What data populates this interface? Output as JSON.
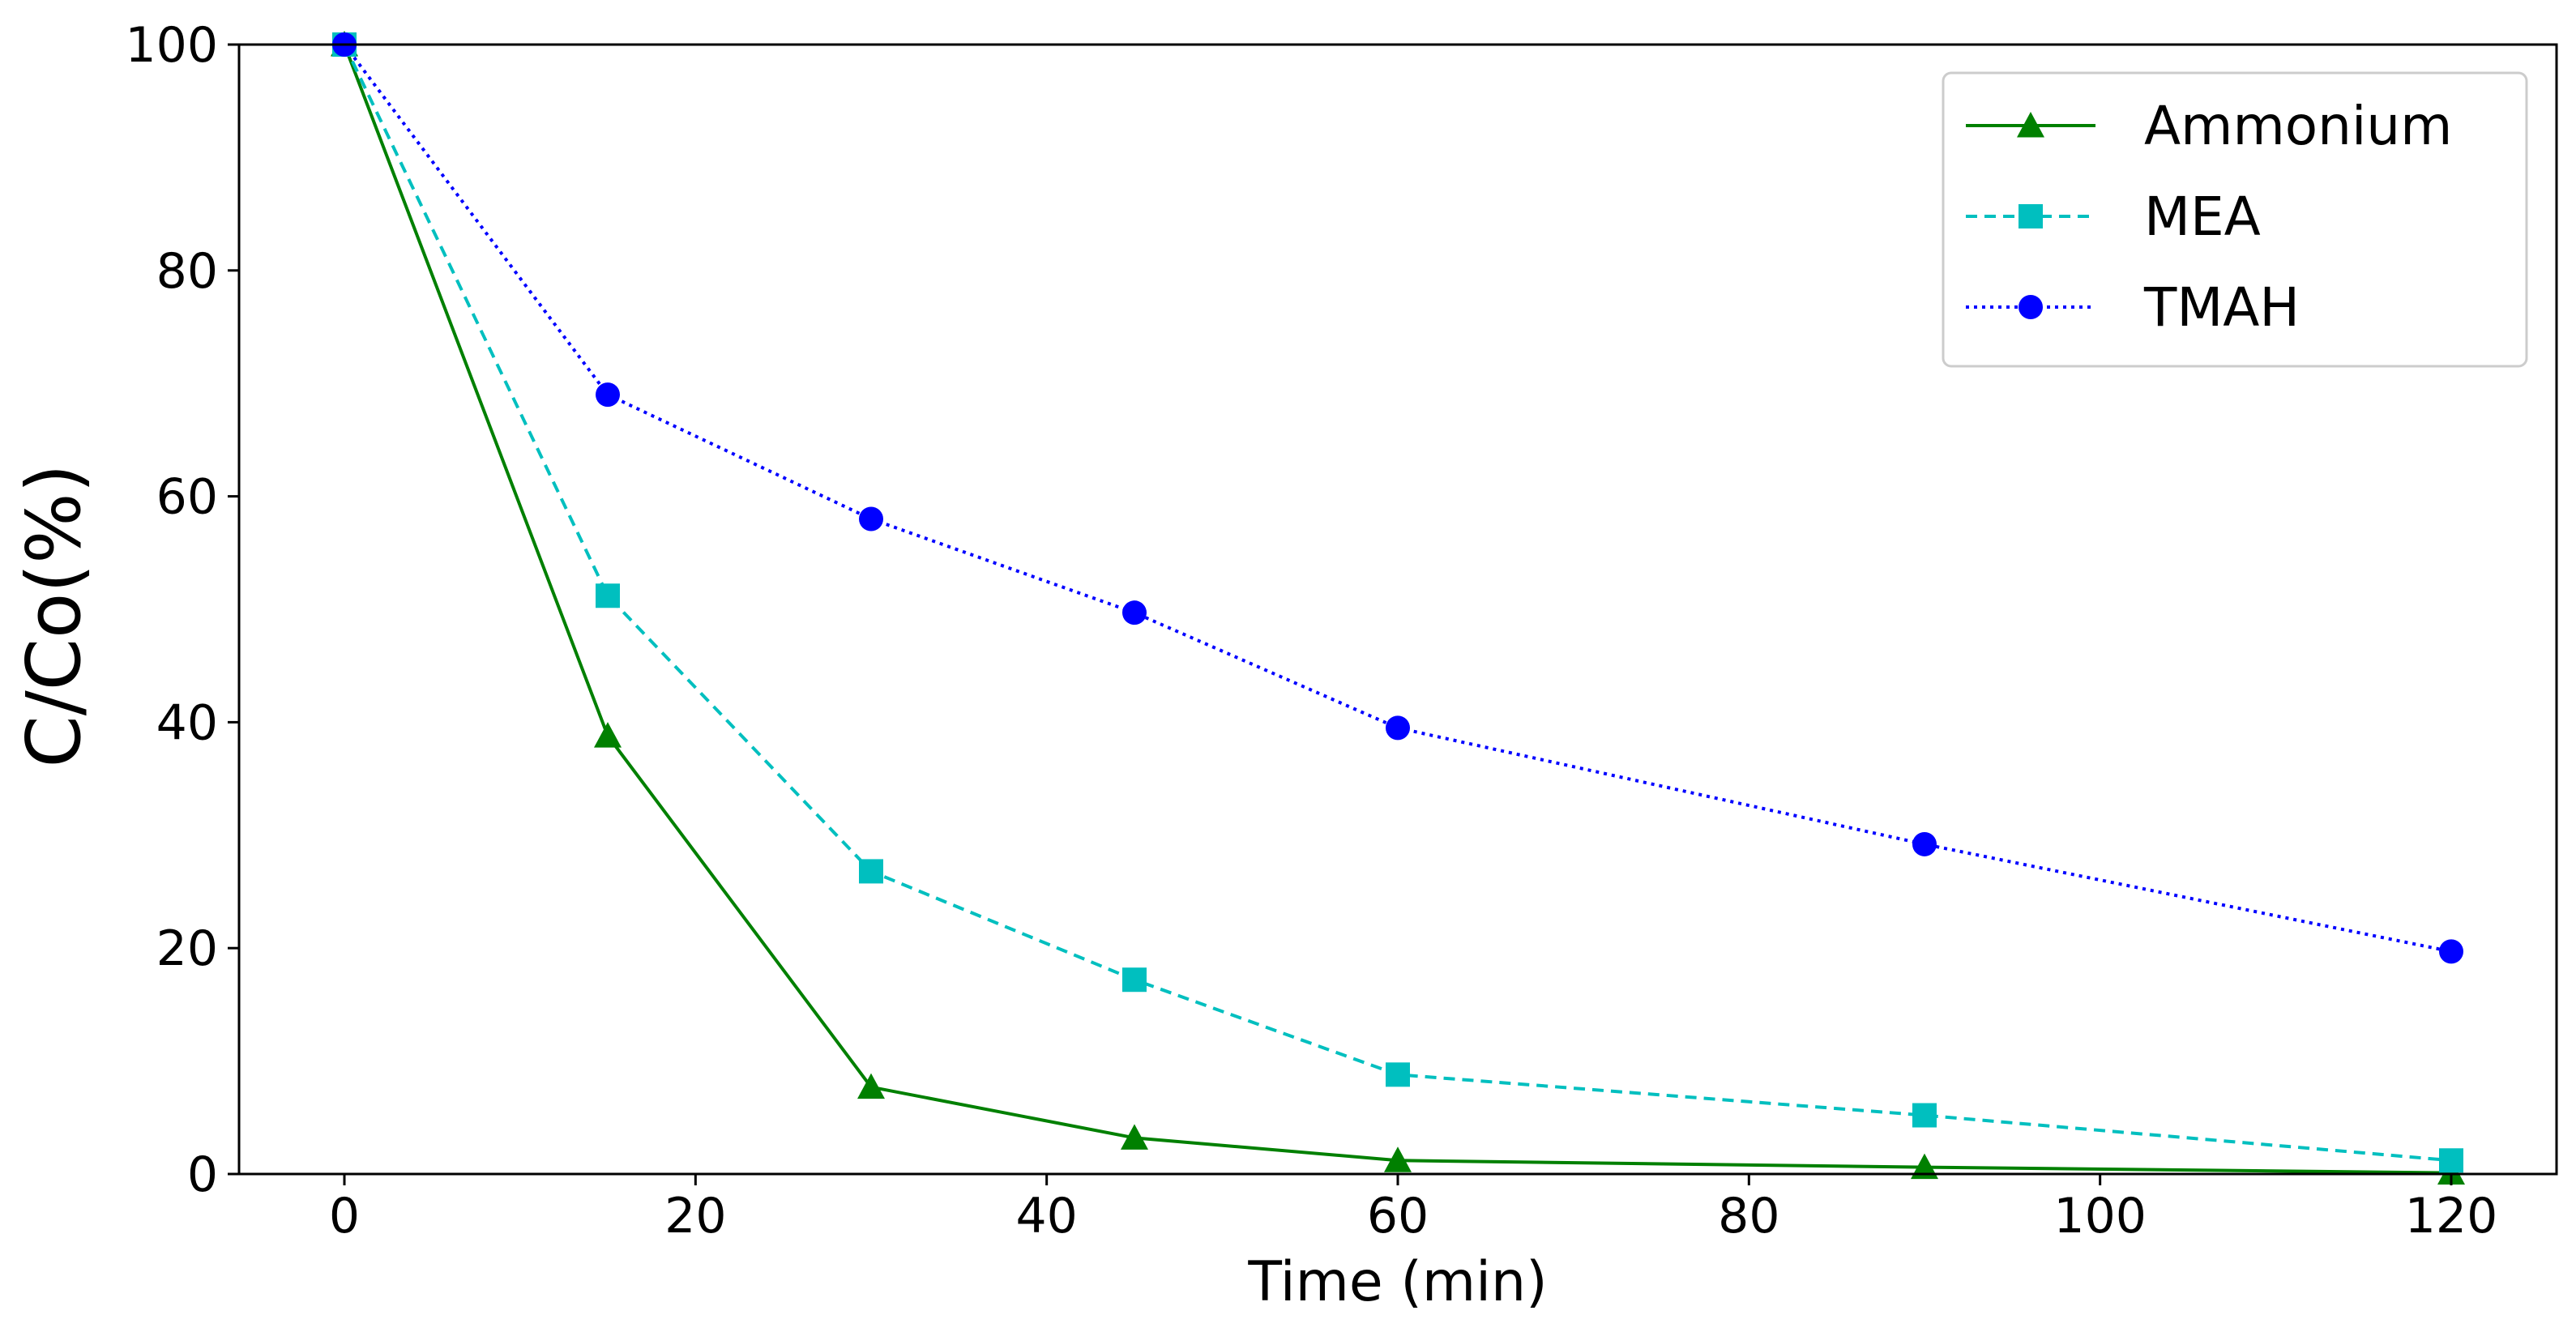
{
  "chart_data": {
    "type": "line",
    "title": "",
    "xlabel": "Time (min)",
    "ylabel": "C/Co(%)",
    "xlim": [
      -6,
      126
    ],
    "ylim": [
      0,
      100
    ],
    "xticks": [
      0,
      20,
      40,
      60,
      80,
      100,
      120
    ],
    "yticks": [
      0,
      20,
      40,
      60,
      80,
      100
    ],
    "xtick_labels": [
      "0",
      "20",
      "40",
      "60",
      "80",
      "100",
      "120"
    ],
    "ytick_labels": [
      "0",
      "20",
      "40",
      "60",
      "80",
      "100"
    ],
    "grid": false,
    "legend_position": "top-right",
    "x": [
      0,
      15,
      30,
      45,
      60,
      90,
      120
    ],
    "series": [
      {
        "name": "Ammonium",
        "marker": "triangle",
        "linestyle": "solid",
        "color": "#008000",
        "values": [
          100,
          38.8,
          7.7,
          3.2,
          1.2,
          0.6,
          0.1
        ]
      },
      {
        "name": "MEA",
        "marker": "square",
        "linestyle": "dashed",
        "color": "#00BFBF",
        "values": [
          100,
          51.2,
          26.8,
          17.2,
          8.8,
          5.2,
          1.2
        ]
      },
      {
        "name": "TMAH",
        "marker": "circle",
        "linestyle": "dotted",
        "color": "#0000FF",
        "values": [
          100,
          69,
          58,
          49.7,
          39.5,
          29.2,
          19.7
        ]
      }
    ]
  }
}
